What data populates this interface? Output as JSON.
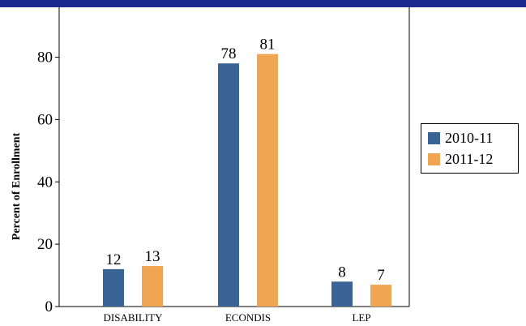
{
  "chart_data": {
    "type": "bar",
    "categories": [
      "DISABILITY",
      "ECONDIS",
      "LEP"
    ],
    "series": [
      {
        "name": "2010-11",
        "values": [
          12,
          78,
          8
        ],
        "color": "#3a6496"
      },
      {
        "name": "2011-12",
        "values": [
          13,
          81,
          7
        ],
        "color": "#f0a552"
      }
    ],
    "title": "",
    "xlabel": "",
    "ylabel": "Percent of Enrollment",
    "ylim": [
      0,
      96
    ],
    "yticks": [
      0,
      20,
      40,
      60,
      80
    ],
    "grid": false,
    "legend_position": "right"
  },
  "colors": {
    "header_bar": "#1c2a8f"
  }
}
